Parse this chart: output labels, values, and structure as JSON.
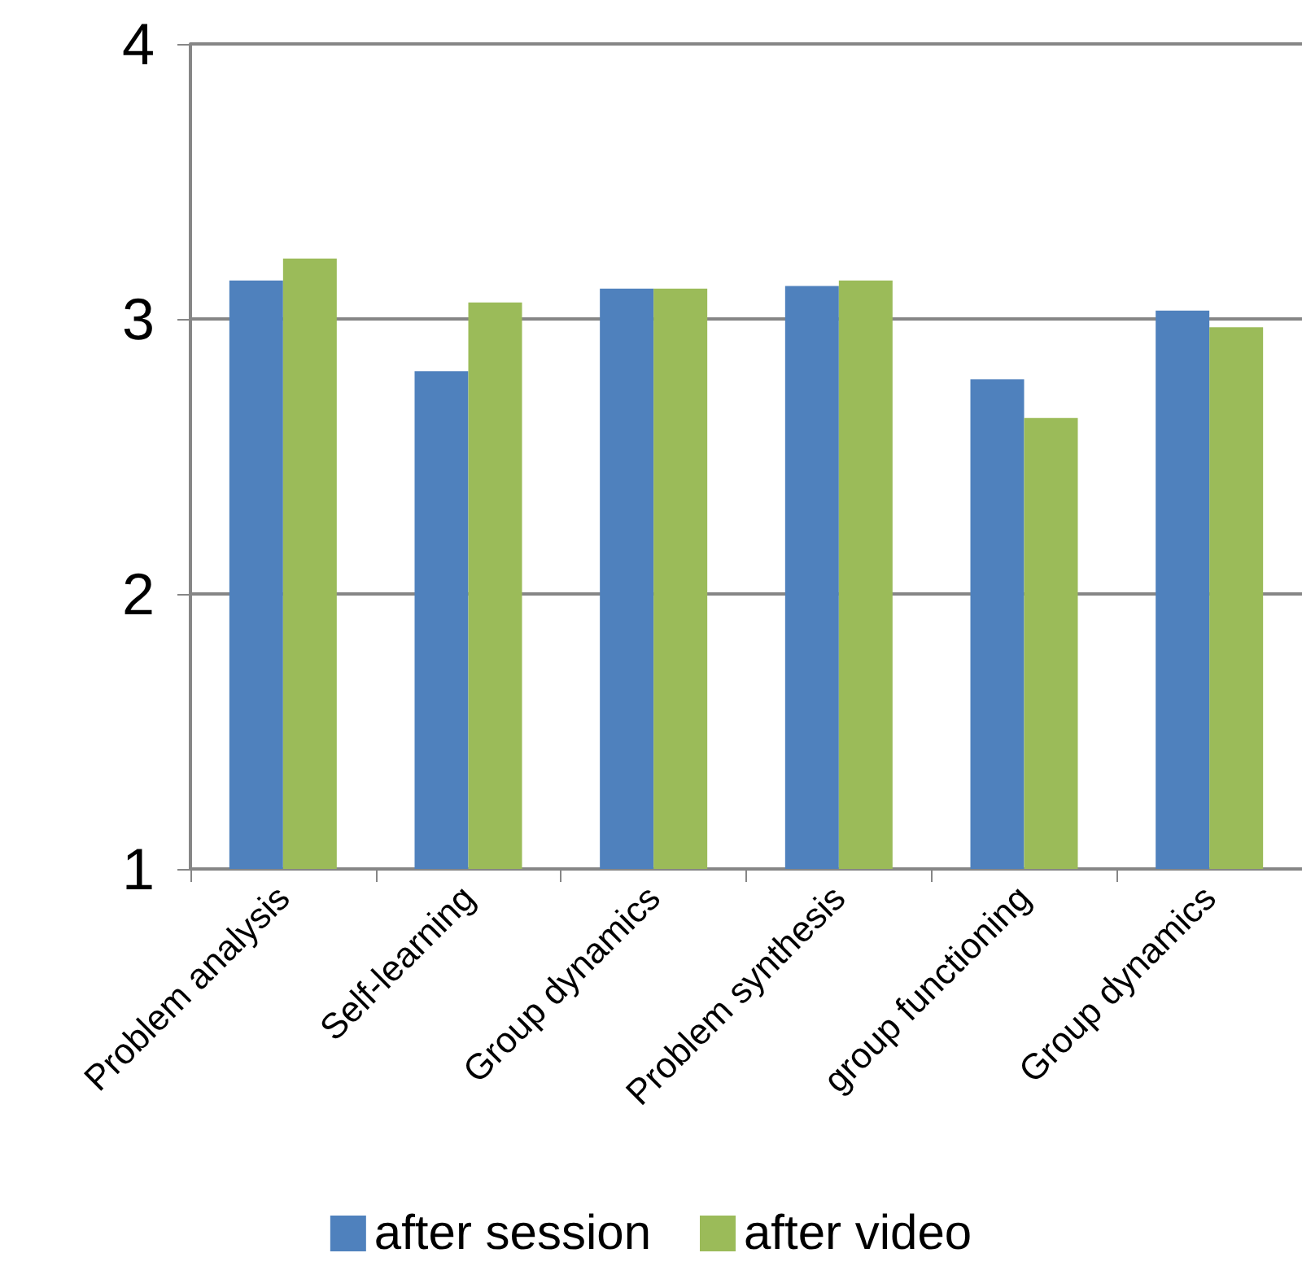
{
  "chart_data": {
    "type": "bar",
    "categories": [
      "Problem analysis",
      "Self-learning",
      "Group dynamics",
      "Problem synthesis",
      "group functioning",
      "Group dynamics"
    ],
    "series": [
      {
        "name": "after session",
        "color": "#4f81bd",
        "values": [
          3.14,
          2.81,
          3.11,
          3.12,
          2.78,
          3.03
        ]
      },
      {
        "name": "after video",
        "color": "#9bbb59",
        "values": [
          3.22,
          3.06,
          3.11,
          3.14,
          2.64,
          2.97
        ]
      }
    ],
    "ylim": [
      1,
      4
    ],
    "yticks": [
      1,
      2,
      3,
      4
    ],
    "grid": "y",
    "legend": "bottom"
  }
}
